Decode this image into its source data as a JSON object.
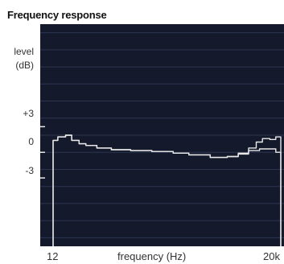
{
  "chart_data": {
    "type": "line",
    "title": "Frequency response",
    "ylabel": "level",
    "yunit": "(dB)",
    "xlabel": "frequency (Hz)",
    "x_tick_labels": [
      "12",
      "20k"
    ],
    "y_tick_labels": [
      "+3",
      "0",
      "-3"
    ],
    "ylim": [
      -11,
      15
    ],
    "xlim": [
      12,
      20000
    ],
    "x_scale": "log",
    "grid": true,
    "background_color": "#141a2c",
    "grid_color": "#2c3550",
    "trace_color": "#e8e8e8",
    "series": [
      {
        "values": [
          [
            12,
            1.4
          ],
          [
            14,
            1.8
          ],
          [
            18,
            2.0
          ],
          [
            22,
            1.4
          ],
          [
            28,
            1.0
          ],
          [
            35,
            0.8
          ],
          [
            50,
            0.5
          ],
          [
            80,
            0.3
          ],
          [
            150,
            0.2
          ],
          [
            300,
            0.1
          ],
          [
            600,
            -0.1
          ],
          [
            1000,
            -0.3
          ],
          [
            2000,
            -0.6
          ],
          [
            3500,
            -0.5
          ],
          [
            5000,
            -0.2
          ],
          [
            7000,
            0.2
          ],
          [
            10000,
            0.4
          ],
          [
            14000,
            0.4
          ],
          [
            17000,
            0.0
          ],
          [
            20000,
            0.0
          ]
        ]
      },
      {
        "values": [
          [
            12,
            1.4
          ],
          [
            14,
            1.8
          ],
          [
            18,
            2.0
          ],
          [
            22,
            1.4
          ],
          [
            28,
            1.0
          ],
          [
            35,
            0.8
          ],
          [
            50,
            0.5
          ],
          [
            80,
            0.3
          ],
          [
            150,
            0.2
          ],
          [
            300,
            0.1
          ],
          [
            600,
            -0.1
          ],
          [
            1000,
            -0.3
          ],
          [
            2000,
            -0.6
          ],
          [
            3500,
            -0.5
          ],
          [
            5000,
            -0.1
          ],
          [
            7000,
            0.5
          ],
          [
            9000,
            1.2
          ],
          [
            11000,
            1.6
          ],
          [
            14000,
            1.5
          ],
          [
            17000,
            1.8
          ],
          [
            20000,
            1.4
          ]
        ]
      }
    ]
  }
}
